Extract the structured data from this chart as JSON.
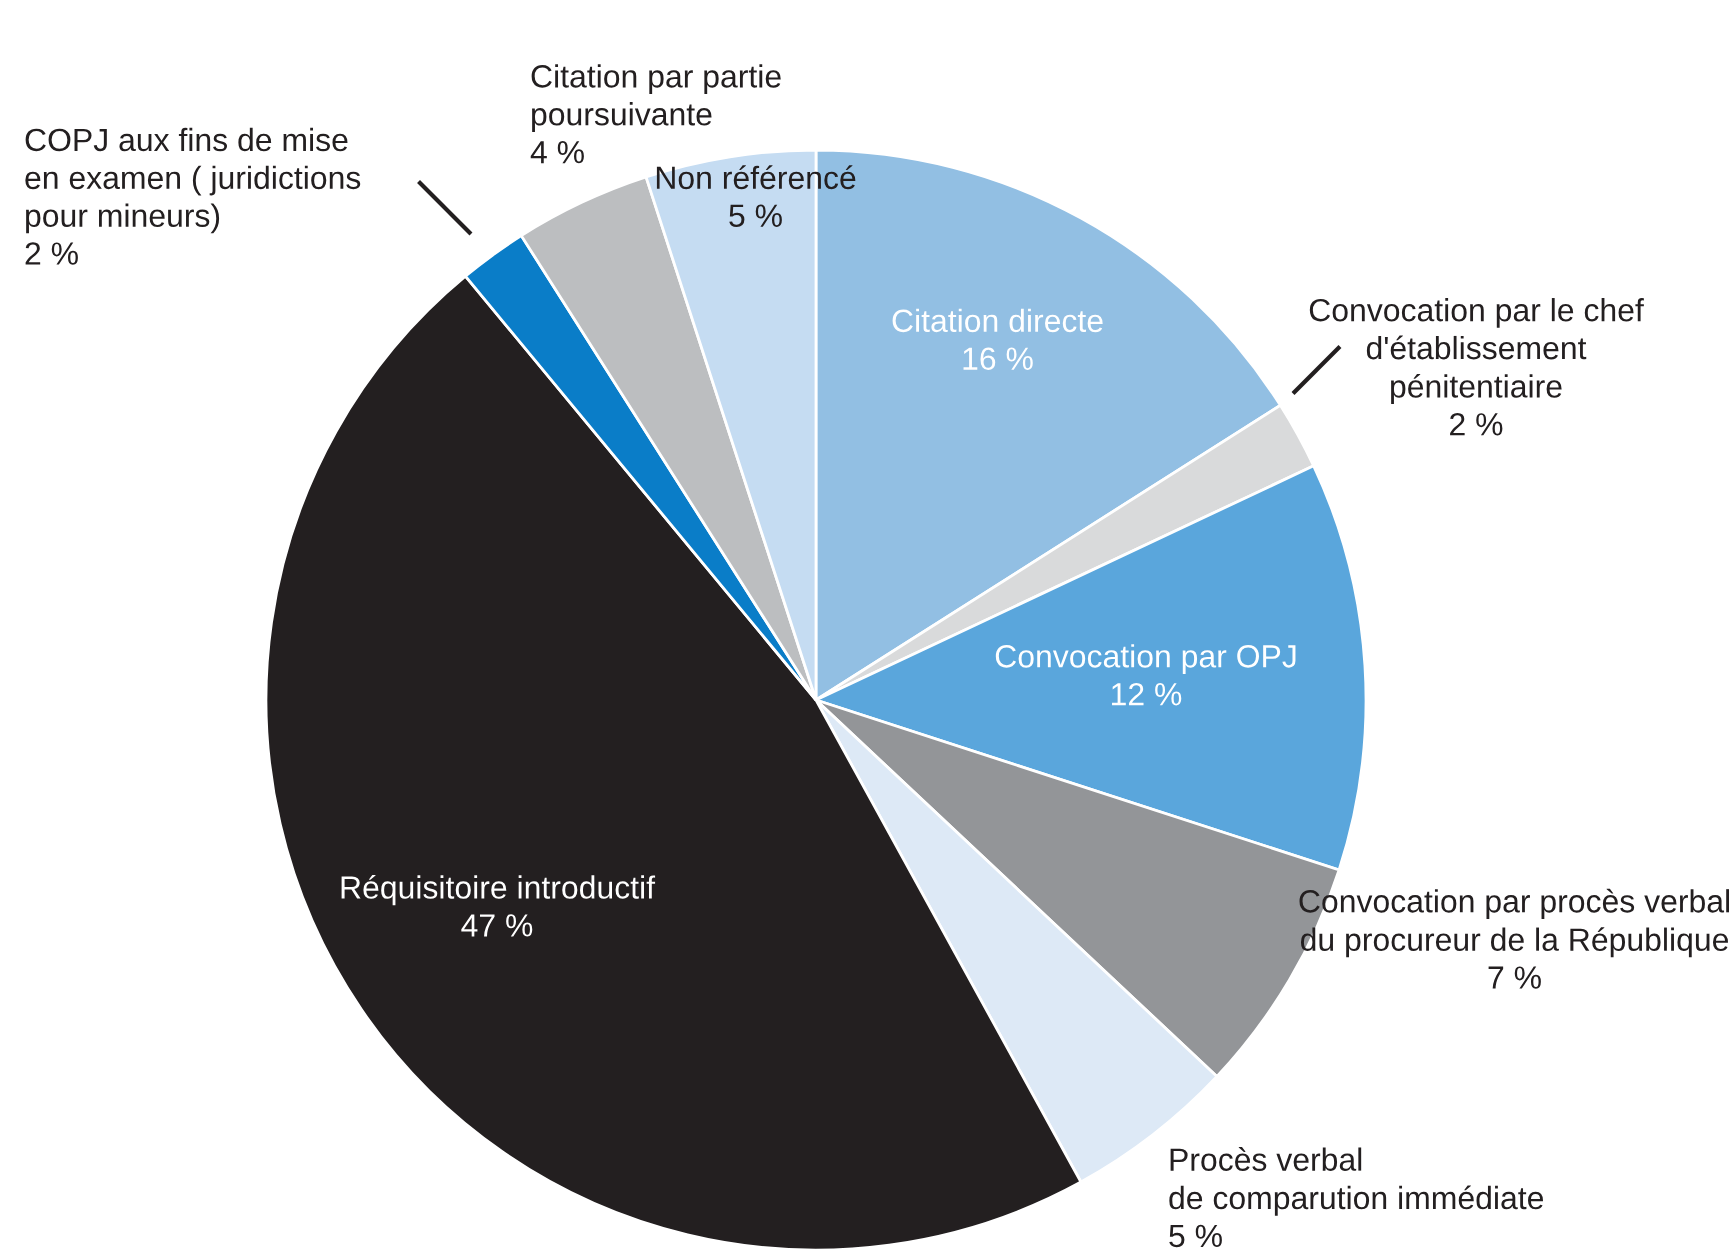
{
  "chart_data": {
    "type": "pie",
    "categories": [
      "Citation directe",
      "Convocation par le chef\nd'établissement\npénitentiaire",
      "Convocation par OPJ",
      "Convocation par procès verbal\ndu procureur de la République",
      "Procès verbal\nde comparution immédiate",
      "Réquisitoire introductif",
      "COPJ aux fins de mise\nen examen ( juridictions\npour mineurs)",
      "Citation par partie\npoursuivante",
      "Non référencé"
    ],
    "values": [
      16,
      2,
      12,
      7,
      5,
      47,
      2,
      4,
      5
    ],
    "value_labels": [
      "16 %",
      "2 %",
      "12 %",
      "7 %",
      "5 %",
      "47 %",
      "2 %",
      "4 %",
      "5 %"
    ],
    "colors": [
      "#92bfe3",
      "#d9dadb",
      "#5aa6dc",
      "#939598",
      "#dde9f6",
      "#231f20",
      "#0a7dc8",
      "#bcbec0",
      "#c5dcf2"
    ]
  }
}
